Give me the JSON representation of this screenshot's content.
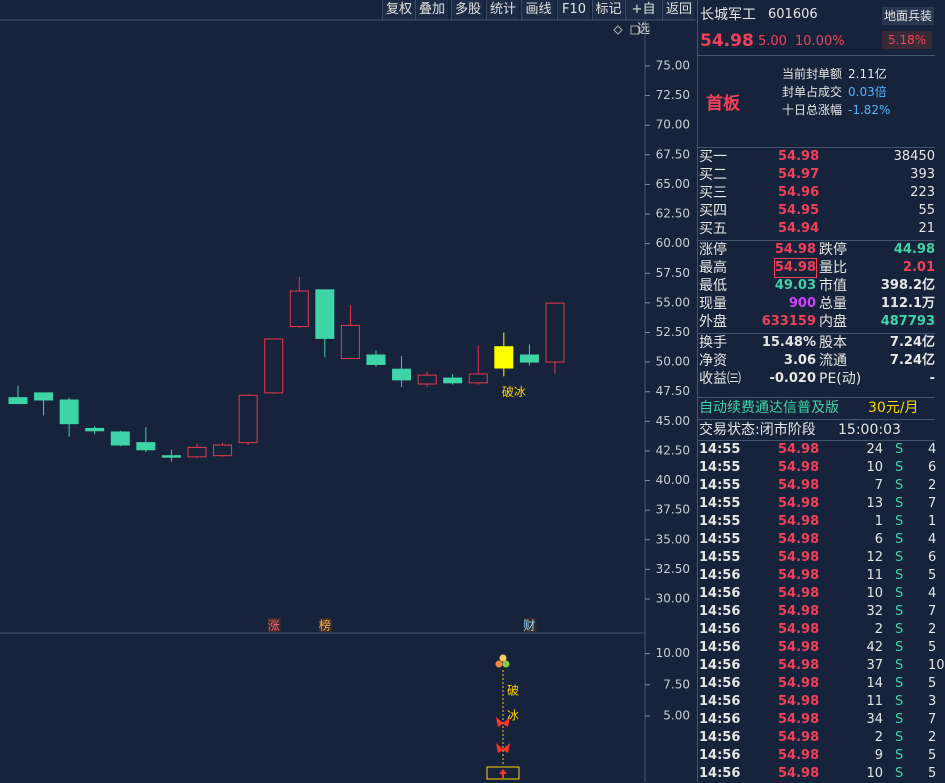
{
  "toolbar": [
    "复权",
    "叠加",
    "多股",
    "统计",
    "画线",
    "F10",
    "标记",
    "+自选",
    "返回"
  ],
  "chart_data": [
    {
      "type": "candlestick",
      "open": [
        47.0,
        47.4,
        46.8,
        44.4,
        44.1,
        43.2,
        42.1,
        42.0,
        42.1,
        43.2,
        47.4,
        53.0,
        56.1,
        50.3,
        50.6,
        49.4,
        48.15,
        48.65,
        48.25,
        49.5,
        50.6,
        50.0
      ],
      "high": [
        48.0,
        47.4,
        47.0,
        44.6,
        44.2,
        44.5,
        42.6,
        43.1,
        43.2,
        47.3,
        52.0,
        57.2,
        56.1,
        54.8,
        51.0,
        50.5,
        49.2,
        49.0,
        51.4,
        52.5,
        51.5,
        54.98
      ],
      "low": [
        46.5,
        45.5,
        43.7,
        43.9,
        42.9,
        42.4,
        41.6,
        41.9,
        42.0,
        43.0,
        47.3,
        52.9,
        50.4,
        50.3,
        49.6,
        47.9,
        47.9,
        48.1,
        48.1,
        48.8,
        49.7,
        49.03
      ],
      "close": [
        46.5,
        46.8,
        44.8,
        44.2,
        43.0,
        42.6,
        42.1,
        42.8,
        43.0,
        47.2,
        51.95,
        56.0,
        52.0,
        53.1,
        49.8,
        48.5,
        48.9,
        48.25,
        49.0,
        51.3,
        50.0,
        54.98
      ],
      "colors": [
        "#3fd3a8",
        "#3fd3a8",
        "#3fd3a8",
        "#3fd3a8",
        "#3fd3a8",
        "#3fd3a8",
        "#3fd3a8",
        "#e8384f",
        "#e8384f",
        "#e8384f",
        "#e8384f",
        "#e8384f",
        "#3fd3a8",
        "#e8384f",
        "#3fd3a8",
        "#3fd3a8",
        "#e8384f",
        "#3fd3a8",
        "#e8384f",
        "#ffff00",
        "#3fd3a8",
        "#e8384f"
      ],
      "up_color": "#e8384f",
      "annotations": [
        null,
        null,
        null,
        null,
        null,
        null,
        null,
        null,
        null,
        null,
        null,
        null,
        null,
        null,
        null,
        null,
        null,
        null,
        null,
        "破冰",
        null,
        null
      ],
      "events": [
        null,
        null,
        null,
        null,
        null,
        null,
        null,
        null,
        null,
        null,
        "涨",
        null,
        "榜",
        null,
        null,
        null,
        null,
        null,
        null,
        null,
        "财",
        null
      ],
      "ylim": [
        27.13,
        78.88
      ],
      "yticks": [
        {
          "value": 30,
          "label": "30.00"
        },
        {
          "value": 32.5,
          "label": "32.50"
        },
        {
          "value": 35,
          "label": "35.00"
        },
        {
          "value": 37.5,
          "label": "37.50"
        },
        {
          "value": 40,
          "label": "40.00"
        },
        {
          "value": 42.5,
          "label": "42.50"
        },
        {
          "value": 45,
          "label": "45.00"
        },
        {
          "value": 47.5,
          "label": "47.50"
        },
        {
          "value": 50,
          "label": "50.00"
        },
        {
          "value": 52.5,
          "label": "52.50"
        },
        {
          "value": 55,
          "label": "55.00"
        },
        {
          "value": 57.5,
          "label": "57.50"
        },
        {
          "value": 60,
          "label": "60.00"
        },
        {
          "value": 62.5,
          "label": "62.50"
        },
        {
          "value": 65,
          "label": "65.00"
        },
        {
          "value": 67.5,
          "label": "67.50"
        },
        {
          "value": 70,
          "label": "70.00"
        },
        {
          "value": 72.5,
          "label": "72.50"
        },
        {
          "value": 75,
          "label": "75.00"
        }
      ]
    },
    {
      "type": "indicator",
      "labels": [
        "破",
        "冰"
      ],
      "ylim": [
        -0.3,
        11.5
      ],
      "yticks": [
        {
          "value": 5,
          "label": "5.00"
        },
        {
          "value": 7.5,
          "label": "7.50"
        },
        {
          "value": 10,
          "label": "10.00"
        }
      ]
    }
  ],
  "quote": {
    "name": "长城军工",
    "code": "601606",
    "sector": "地面兵装",
    "sector_change": "5.18%",
    "price": "54.98",
    "change": "5.00",
    "change_pct": "10.00%",
    "tag": "首板",
    "info": [
      [
        "当前封单额",
        "2.11亿"
      ],
      [
        "封单占成交",
        "0.03倍"
      ],
      [
        "十日总涨幅",
        "-1.82%"
      ]
    ]
  },
  "order_book": [
    [
      "买一",
      "54.98",
      "38450"
    ],
    [
      "买二",
      "54.97",
      "393"
    ],
    [
      "买三",
      "54.96",
      "223"
    ],
    [
      "买四",
      "54.95",
      "55"
    ],
    [
      "买五",
      "54.94",
      "21"
    ]
  ],
  "stats": [
    [
      "涨停",
      "54.98",
      "跌停",
      "44.98"
    ],
    [
      "最高",
      "54.98",
      "量比",
      "2.01"
    ],
    [
      "最低",
      "49.03",
      "市值",
      "398.2亿"
    ],
    [
      "现量",
      "900",
      "总量",
      "112.1万"
    ],
    [
      "外盘",
      "633159",
      "内盘",
      "487793"
    ],
    [
      "换手",
      "15.48%",
      "股本",
      "7.24亿"
    ],
    [
      "净资",
      "3.06",
      "流通",
      "7.24亿"
    ],
    [
      "收益㈢",
      "-0.020",
      "PE(动)",
      "-"
    ]
  ],
  "ad": "自动续费通达信普及版",
  "ad_price": "30元/月",
  "status": "交易状态:闭市阶段",
  "status_time": "15:00:03",
  "trades": [
    [
      "14:55",
      "54.98",
      "24",
      "S",
      "4"
    ],
    [
      "14:55",
      "54.98",
      "10",
      "S",
      "6"
    ],
    [
      "14:55",
      "54.98",
      "7",
      "S",
      "2"
    ],
    [
      "14:55",
      "54.98",
      "13",
      "S",
      "7"
    ],
    [
      "14:55",
      "54.98",
      "1",
      "S",
      "1"
    ],
    [
      "14:55",
      "54.98",
      "6",
      "S",
      "4"
    ],
    [
      "14:55",
      "54.98",
      "12",
      "S",
      "6"
    ],
    [
      "14:56",
      "54.98",
      "11",
      "S",
      "5"
    ],
    [
      "14:56",
      "54.98",
      "10",
      "S",
      "4"
    ],
    [
      "14:56",
      "54.98",
      "32",
      "S",
      "7"
    ],
    [
      "14:56",
      "54.98",
      "2",
      "S",
      "2"
    ],
    [
      "14:56",
      "54.98",
      "42",
      "S",
      "5"
    ],
    [
      "14:56",
      "54.98",
      "37",
      "S",
      "10"
    ],
    [
      "14:56",
      "54.98",
      "14",
      "S",
      "5"
    ],
    [
      "14:56",
      "54.98",
      "11",
      "S",
      "3"
    ],
    [
      "14:56",
      "54.98",
      "34",
      "S",
      "7"
    ],
    [
      "14:56",
      "54.98",
      "2",
      "S",
      "2"
    ],
    [
      "14:56",
      "54.98",
      "9",
      "S",
      "5"
    ],
    [
      "14:56",
      "54.98",
      "10",
      "S",
      "5"
    ]
  ]
}
